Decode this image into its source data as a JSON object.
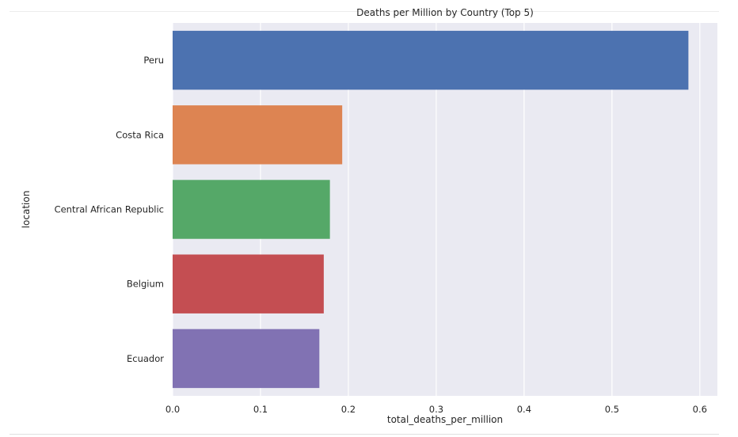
{
  "chart_data": {
    "type": "bar",
    "orientation": "horizontal",
    "title": "Deaths per Million by Country (Top 5)",
    "xlabel": "total_deaths_per_million",
    "ylabel": "location",
    "categories": [
      "Peru",
      "Costa Rica",
      "Central African Republic",
      "Belgium",
      "Ecuador"
    ],
    "values": [
      0.587,
      0.193,
      0.179,
      0.172,
      0.167
    ],
    "colors": [
      "#4c72b0",
      "#dd8452",
      "#55a868",
      "#c44e52",
      "#8172b3"
    ],
    "xlim": [
      0,
      0.62
    ],
    "xticks": [
      0.0,
      0.1,
      0.2,
      0.3,
      0.4,
      0.5,
      0.6
    ],
    "xtick_labels": [
      "0.0",
      "0.1",
      "0.2",
      "0.3",
      "0.4",
      "0.5",
      "0.6"
    ],
    "grid": true,
    "style": {
      "plot_background": "#eaeaf2",
      "grid_color": "#ffffff"
    }
  }
}
